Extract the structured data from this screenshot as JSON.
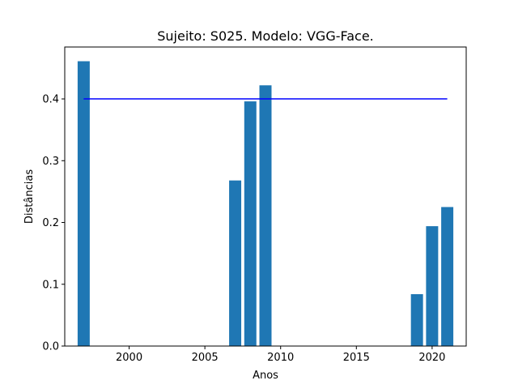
{
  "chart_data": {
    "type": "bar",
    "title": "Sujeito: S025. Modelo: VGG-Face.",
    "xlabel": "Anos",
    "ylabel": "Distâncias",
    "x": [
      1997,
      2007,
      2008,
      2009,
      2019,
      2020,
      2021
    ],
    "values": [
      0.461,
      0.268,
      0.396,
      0.422,
      0.084,
      0.194,
      0.225
    ],
    "bar_color": "#1f77b4",
    "threshold": {
      "value": 0.4,
      "x_range": [
        1997,
        2021
      ],
      "color": "#0000ff"
    },
    "xlim": [
      1995.75,
      2022.25
    ],
    "ylim": [
      0,
      0.484
    ],
    "xticks": [
      2000,
      2005,
      2010,
      2015,
      2020
    ],
    "xtick_labels": [
      "2000",
      "2005",
      "2010",
      "2015",
      "2020"
    ],
    "yticks": [
      0.0,
      0.1,
      0.2,
      0.3,
      0.4
    ],
    "ytick_labels": [
      "0.0",
      "0.1",
      "0.2",
      "0.3",
      "0.4"
    ],
    "grid": false,
    "legend": "none"
  }
}
